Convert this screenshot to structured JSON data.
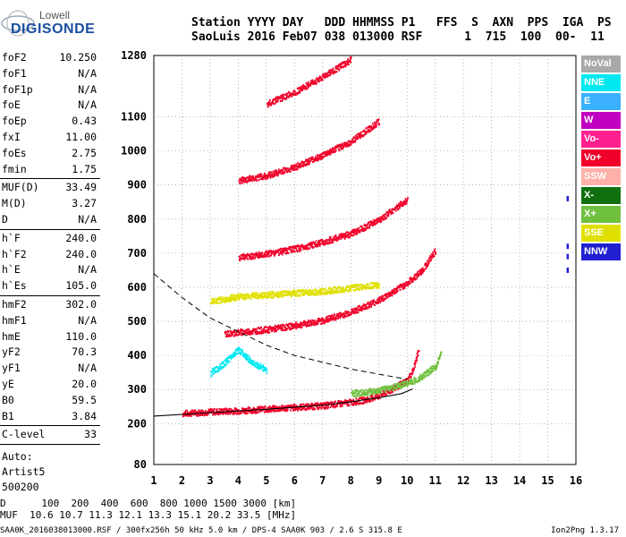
{
  "logo": {
    "line1": "Lowell",
    "line2": "DIGISONDE"
  },
  "header": {
    "labels_line": "Station YYYY DAY   DDD HHMMSS P1   FFS  S  AXN  PPS  IGA  PS",
    "values_line": "SaoLuis 2016 Feb07 038 013000 RSF      1  715  100  00-  11"
  },
  "params": [
    {
      "k": "foF2",
      "v": "10.250"
    },
    {
      "k": "foF1",
      "v": "N/A"
    },
    {
      "k": "foF1p",
      "v": "N/A"
    },
    {
      "k": "foE",
      "v": "N/A"
    },
    {
      "k": "foEp",
      "v": "0.43"
    },
    {
      "k": "fxI",
      "v": "11.00"
    },
    {
      "k": "foEs",
      "v": "2.75"
    },
    {
      "k": "fmin",
      "v": "1.75"
    },
    {
      "k": "MUF(D)",
      "v": "33.49"
    },
    {
      "k": "M(D)",
      "v": "3.27"
    },
    {
      "k": "D",
      "v": "N/A"
    },
    {
      "k": "h`F",
      "v": "240.0"
    },
    {
      "k": "h`F2",
      "v": "240.0"
    },
    {
      "k": "h`E",
      "v": "N/A"
    },
    {
      "k": "h`Es",
      "v": "105.0"
    },
    {
      "k": "hmF2",
      "v": "302.0"
    },
    {
      "k": "hmF1",
      "v": "N/A"
    },
    {
      "k": "hmE",
      "v": "110.0"
    },
    {
      "k": "yF2",
      "v": "70.3"
    },
    {
      "k": "yF1",
      "v": "N/A"
    },
    {
      "k": "yE",
      "v": "20.0"
    },
    {
      "k": "B0",
      "v": "59.5"
    },
    {
      "k": "B1",
      "v": "3.84"
    },
    {
      "k": "C-level",
      "v": "33"
    }
  ],
  "notes": {
    "auto": "Auto:",
    "artist": "Artist5",
    "code": "500200"
  },
  "legend": [
    {
      "label": "NoVal",
      "color": "#a8a8a8"
    },
    {
      "label": "NNE",
      "color": "#00e8f0"
    },
    {
      "label": "E",
      "color": "#3ab0ff"
    },
    {
      "label": "W",
      "color": "#c000c0"
    },
    {
      "label": "Vo-",
      "color": "#ff2090"
    },
    {
      "label": "Vo+",
      "color": "#f0002a"
    },
    {
      "label": "SSW",
      "color": "#ffb0a8"
    },
    {
      "label": "X-",
      "color": "#107010"
    },
    {
      "label": "X+",
      "color": "#70c040"
    },
    {
      "label": "SSE",
      "color": "#e0e000"
    },
    {
      "label": "NNW",
      "color": "#2020d0"
    }
  ],
  "footer": {
    "d_line": "D      100  200  400  600  800 1000 1500 3000 [km]",
    "muf_line": "MUF  10.6 10.7 11.3 12.1 13.3 15.1 20.2 33.5 [MHz]"
  },
  "fileinfo": "SAA0K_2016038013000.RSF / 300fx256h 50 kHz 5.0 km / DPS-4 SAA0K 903 / 2.6 S 315.8 E",
  "version": "Ion2Png 1.3.17",
  "chart_data": {
    "type": "scatter",
    "title": "",
    "xlabel": "",
    "ylabel": "",
    "xlim": [
      1,
      16
    ],
    "ylim": [
      80,
      1280
    ],
    "x_ticks": [
      1,
      2,
      3,
      4,
      5,
      6,
      7,
      8,
      9,
      10,
      11,
      12,
      13,
      14,
      15,
      16
    ],
    "y_ticks": [
      80,
      200,
      300,
      400,
      500,
      600,
      700,
      800,
      900,
      1000,
      1100,
      1280
    ],
    "grid": true,
    "series": [
      {
        "name": "Vo+",
        "color": "#f0002a",
        "points": [
          [
            2,
            232
          ],
          [
            3,
            237
          ],
          [
            4,
            240
          ],
          [
            5,
            245
          ],
          [
            6,
            250
          ],
          [
            7,
            255
          ],
          [
            8,
            265
          ],
          [
            8.5,
            272
          ],
          [
            9,
            285
          ],
          [
            9.5,
            305
          ],
          [
            10,
            330
          ],
          [
            10.2,
            360
          ],
          [
            10.4,
            420
          ]
        ]
      },
      {
        "name": "Vo+",
        "color": "#f0002a",
        "points": [
          [
            3.5,
            465
          ],
          [
            4,
            470
          ],
          [
            5,
            478
          ],
          [
            6,
            490
          ],
          [
            7,
            505
          ],
          [
            8,
            530
          ],
          [
            9,
            565
          ],
          [
            10,
            615
          ],
          [
            10.5,
            650
          ],
          [
            11,
            710
          ]
        ]
      },
      {
        "name": "Vo+",
        "color": "#f0002a",
        "points": [
          [
            4,
            690
          ],
          [
            5,
            700
          ],
          [
            6,
            715
          ],
          [
            7,
            735
          ],
          [
            8,
            760
          ],
          [
            9,
            800
          ],
          [
            10,
            860
          ]
        ]
      },
      {
        "name": "Vo+",
        "color": "#f0002a",
        "points": [
          [
            4,
            915
          ],
          [
            5,
            930
          ],
          [
            6,
            955
          ],
          [
            7,
            990
          ],
          [
            8,
            1030
          ],
          [
            9,
            1090
          ]
        ]
      },
      {
        "name": "Vo+",
        "color": "#f0002a",
        "points": [
          [
            5,
            1140
          ],
          [
            6,
            1175
          ],
          [
            7,
            1220
          ],
          [
            8,
            1270
          ]
        ]
      },
      {
        "name": "X+",
        "color": "#70c040",
        "points": [
          [
            8,
            290
          ],
          [
            9,
            300
          ],
          [
            10,
            320
          ],
          [
            10.5,
            340
          ],
          [
            11,
            370
          ],
          [
            11.2,
            410
          ]
        ]
      },
      {
        "name": "SSE",
        "color": "#e0e000",
        "points": [
          [
            3,
            560
          ],
          [
            4,
            575
          ],
          [
            5,
            580
          ],
          [
            6,
            585
          ],
          [
            7,
            590
          ],
          [
            8,
            600
          ],
          [
            9,
            610
          ]
        ]
      },
      {
        "name": "NNE",
        "color": "#00e8f0",
        "points": [
          [
            3,
            350
          ],
          [
            3.5,
            380
          ],
          [
            4,
            420
          ],
          [
            4.5,
            380
          ],
          [
            5,
            360
          ]
        ]
      },
      {
        "name": "NNW",
        "color": "#2020d0",
        "points": [
          [
            15.7,
            720
          ],
          [
            15.7,
            690
          ],
          [
            15.7,
            650
          ],
          [
            15.7,
            860
          ]
        ]
      }
    ],
    "profile_curve": [
      [
        1,
        222
      ],
      [
        3,
        232
      ],
      [
        5,
        242
      ],
      [
        7,
        254
      ],
      [
        8,
        264
      ],
      [
        9,
        276
      ],
      [
        9.8,
        288
      ],
      [
        10.2,
        302
      ]
    ],
    "dashed_curve": [
      [
        1,
        640
      ],
      [
        2,
        570
      ],
      [
        3,
        510
      ],
      [
        4,
        470
      ],
      [
        5,
        430
      ],
      [
        6,
        400
      ],
      [
        7,
        380
      ],
      [
        8,
        360
      ],
      [
        9,
        345
      ],
      [
        10,
        330
      ]
    ]
  }
}
